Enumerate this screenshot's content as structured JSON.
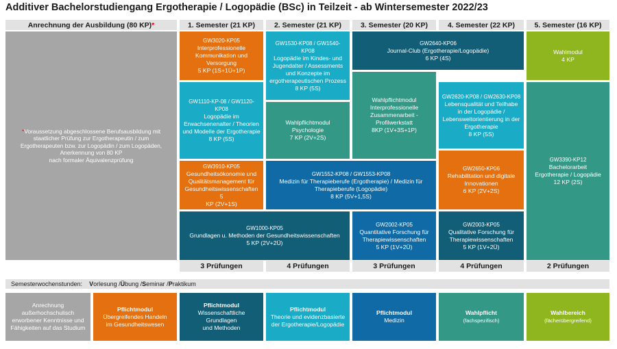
{
  "title": "Additiver Bachelorstudiengang Ergotherapie / Logopädie (BSc) in Teilzeit - ab Wintersemester 2022/23",
  "headers": {
    "anrechnung": "Anrechnung der Ausbildung (80 KP)",
    "anrechnung_star": "*",
    "sem1": "1. Semester (21 KP)",
    "sem2": "2. Semester (21 KP)",
    "sem3": "3. Semester (20 KP)",
    "sem4": "4. Semester (22 KP)",
    "sem5": "5. Semester (16 KP)"
  },
  "note": {
    "star": "*",
    "lines": [
      "Voraussetzung abgeschlossene Berufsausbildung mit",
      "staatlicher Prüfung zur Ergotherapeutin / zum",
      "Ergotherapeuten bzw. zur Logopädin / zum Logopäden,",
      "Anerkennung von 80 KP",
      "nach formaler Äquivalenzprüfung"
    ]
  },
  "modules": {
    "gw3020": [
      "GW3020-KP05",
      "Interprofessionelle",
      "Kommunikation und",
      "Versorgung",
      "5 KP (1S+1Ü+1P)"
    ],
    "gw1110": [
      "GW1110-KP-08 / GW1120-KP08",
      "Logopädie im",
      "Erwachsenenalter / Theorien",
      "und Modelle der Ergotherapie",
      "8 KP (5S)"
    ],
    "gw3910": [
      "GW3910-KP05",
      "Gesundheitsökonomie und",
      "Qualitätsmanagement für",
      "Gesundheitswissenschaften   5",
      "KP (2V+1S)"
    ],
    "gw1000": [
      "GW1000-KP05",
      "Grundlagen u. Methoden der Gesundheitswissenschaften",
      "5 KP (2V+2Ü)"
    ],
    "gw1530": [
      "GW1530-KP08 / GW1540-KP08",
      "Logopädie im Kindes- und",
      "Jugendalter / Assessments",
      "und Konzepte im",
      "ergotherapeutischen Prozess",
      "8 KP (5S)"
    ],
    "wpm_psych": [
      "Wahlpflichtmodul",
      "Psychologie",
      "7 KP (2V+2S)"
    ],
    "gw1552": [
      "GW1552-KP08 / GW1553-KP08",
      "Medizin für Therapieberufe (Ergotherapie) / Medizin für",
      "Therapieberufe (Logopädie)",
      "8 KP (5V+1,5S)"
    ],
    "gw2640": [
      "GW2640-KP06",
      "Journal-Club (Ergotherapie/Logopädie)",
      "6 KP (4S)"
    ],
    "wpm_inter": [
      "Wahlpflichtmodul",
      "Interprofessionelle",
      "Zusammenarbeit -",
      "Profilwerkstatt",
      "8KP  (1V+3S+1P)"
    ],
    "gw2002": [
      "GW2002-KP05",
      "Quantitative Forschung für",
      "Therapiewissenschaften",
      "5 KP (1V+2Ü)"
    ],
    "gw2620": [
      "GW2620-KP08 / GW2630-KP08",
      "Lebensqualität und Teilhabe",
      "in der Logopädie /",
      "Lebensweltorientierung in der",
      "Ergotherapie",
      "8 KP (5S)"
    ],
    "gw2650": [
      "GW2650-KP06",
      "Rehabilitation und digitale",
      "Innovationen",
      "6 KP (2V+2S)"
    ],
    "gw2003": [
      "GW2003-KP05",
      "Qualitative Forschung für",
      "Therapiewissenschaften",
      "5 KP (1V+2Ü)"
    ],
    "wahlmodul": [
      "Wahlmodul",
      "4 KP"
    ],
    "gw3390": [
      "GW3390-KP12",
      "Bachelorarbeit",
      "Ergotherapie / Logopädie",
      "12 KP (2S)"
    ]
  },
  "pruefungen": {
    "sem1": "3  Prüfungen",
    "sem2": "4 Prüfungen",
    "sem3": "3 Prüfungen",
    "sem4": "4 Prüfungen",
    "sem5": "2 Prüfungen"
  },
  "sws": {
    "label": "Semesterwochenstunden:",
    "v": "V",
    "v_rest": "orlesung / ",
    "u": "Ü",
    "u_rest": "bung / ",
    "s": "S",
    "s_rest": "eminar / ",
    "p": "P",
    "p_rest": "raktikum"
  },
  "legend": {
    "anrechnung": [
      "Anrechnung",
      "außerhochschulisch",
      "erworbener Kenntnisse und",
      "Fähigkeiten auf das Studium"
    ],
    "pm_handeln": {
      "title": "Pflichtmodul",
      "lines": [
        "Übergreifendes Handeln",
        "im Gesundheitswesen"
      ]
    },
    "pm_wiss": {
      "title": "Pflichtmodul",
      "lines": [
        "Wissenschaftliche Grundlagen",
        "und Methoden"
      ]
    },
    "pm_theorie": {
      "title": "Pflichtmodul",
      "lines": [
        "Theorie und evidenzbasierte",
        "der Ergotherapie/Logopädie"
      ]
    },
    "pm_medizin": {
      "title": "Pflichtmodul",
      "lines": [
        "Medizin"
      ]
    },
    "wahlpflicht": {
      "title": "Wahlpflicht",
      "sub": "(fachspezifisch)"
    },
    "wahlbereich": {
      "title": "Wahlbereich",
      "sub": "(fächerübergreifend)"
    }
  },
  "colors": {
    "gray": "#a6a6a6",
    "orange": "#e5700f",
    "dark_teal": "#125e76",
    "cyan": "#1aabc7",
    "blue": "#0f6aa5",
    "green": "#339886",
    "lime": "#8fb61f",
    "header_bg": "#e2e2e2",
    "star_red": "#e3001b"
  }
}
